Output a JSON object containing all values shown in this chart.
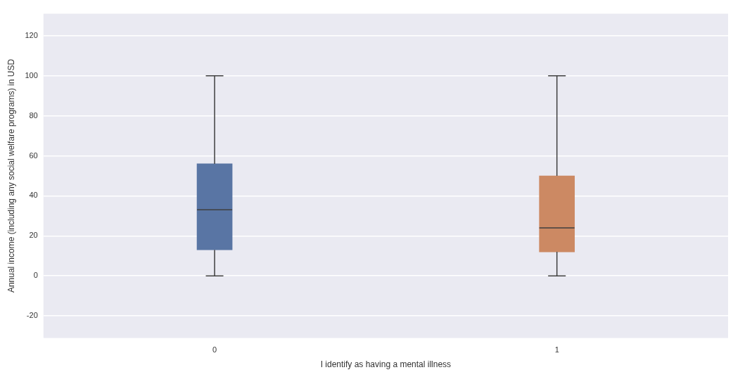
{
  "chart_data": {
    "type": "box",
    "xlabel": "I identify as having a mental illness",
    "ylabel": "Annual income (including any social welfare programs) in USD",
    "categories": [
      "0",
      "1"
    ],
    "boxes": [
      {
        "low": 0,
        "q1": 13,
        "median": 33,
        "q3": 56,
        "high": 100
      },
      {
        "low": 0,
        "q1": 12,
        "median": 24,
        "q3": 50,
        "high": 100
      }
    ],
    "colors": [
      "#5975a4",
      "#cc8963"
    ],
    "ylim": [
      -31,
      131
    ],
    "yticks": [
      -20,
      0,
      20,
      40,
      60,
      80,
      100,
      120
    ],
    "grid": "y"
  }
}
